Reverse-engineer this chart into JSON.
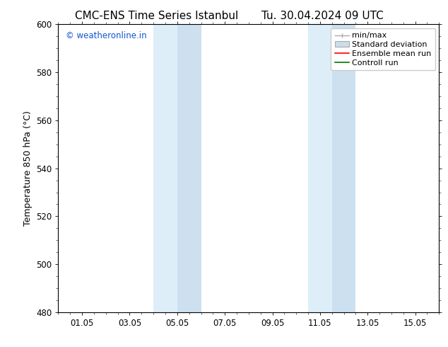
{
  "title_left": "CMC-ENS Time Series Istanbul",
  "title_right": "Tu. 30.04.2024 09 UTC",
  "ylabel": "Temperature 850 hPa (°C)",
  "ylim": [
    480,
    600
  ],
  "yticks": [
    480,
    500,
    520,
    540,
    560,
    580,
    600
  ],
  "xtick_labels": [
    "01.05",
    "03.05",
    "05.05",
    "07.05",
    "09.05",
    "11.05",
    "13.05",
    "15.05"
  ],
  "xtick_positions": [
    1,
    3,
    5,
    7,
    9,
    11,
    13,
    15
  ],
  "xlim": [
    0,
    16
  ],
  "shaded_regions": [
    {
      "x_start": 4.0,
      "x_end": 5.0,
      "color": "#ddeef8"
    },
    {
      "x_start": 5.0,
      "x_end": 6.0,
      "color": "#cce0f0"
    },
    {
      "x_start": 10.5,
      "x_end": 11.5,
      "color": "#ddeef8"
    },
    {
      "x_start": 11.5,
      "x_end": 12.5,
      "color": "#cce0f0"
    }
  ],
  "legend_entries": [
    {
      "label": "min/max",
      "color": "#aaaaaa",
      "style": "line_with_caps"
    },
    {
      "label": "Standard deviation",
      "color": "#ccdde8",
      "style": "filled_box"
    },
    {
      "label": "Ensemble mean run",
      "color": "#ff0000",
      "style": "line"
    },
    {
      "label": "Controll run",
      "color": "#007700",
      "style": "line"
    }
  ],
  "watermark_text": "© weatheronline.in",
  "watermark_color": "#1155cc",
  "bg_color": "#ffffff",
  "plot_bg_color": "#ffffff",
  "border_color": "#000000",
  "title_fontsize": 11,
  "axis_fontsize": 9,
  "tick_fontsize": 8.5,
  "legend_fontsize": 8
}
